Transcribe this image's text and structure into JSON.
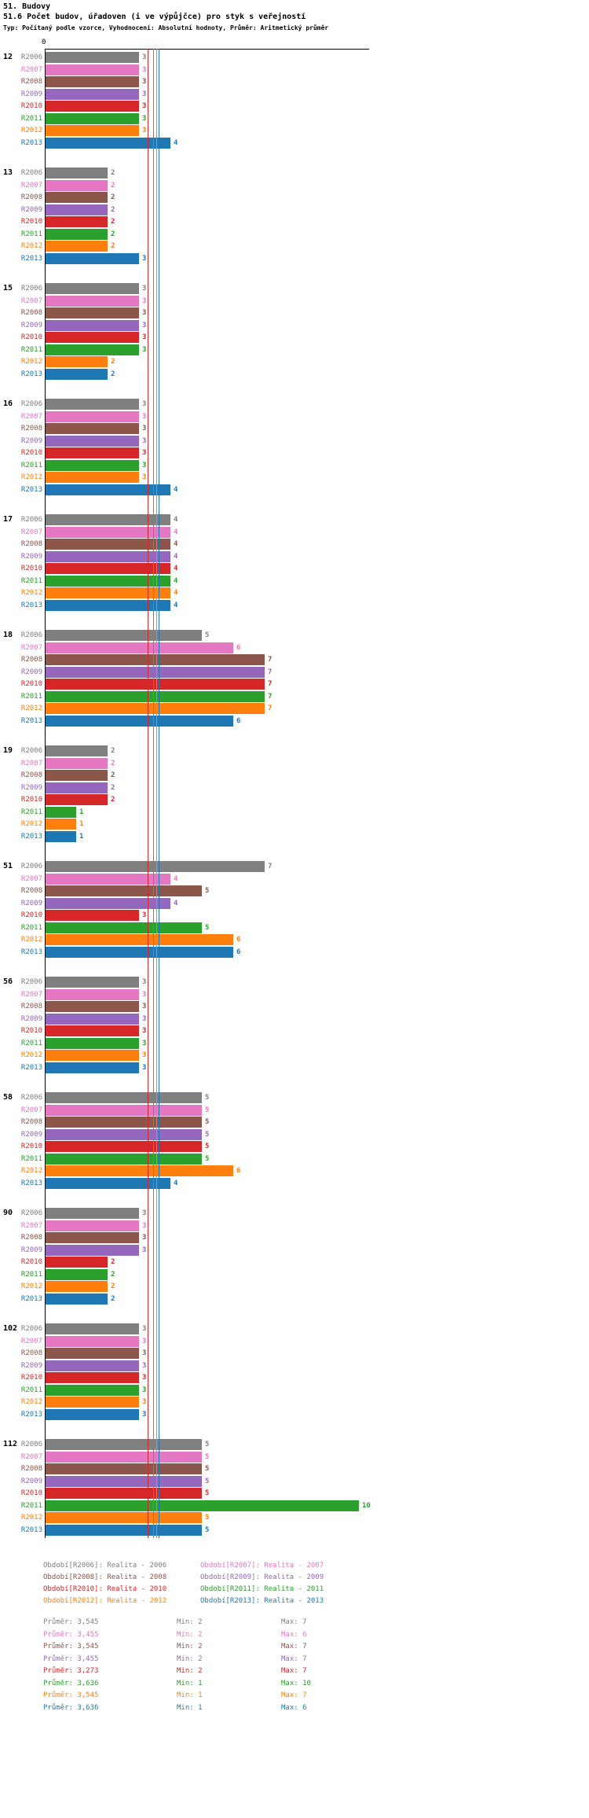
{
  "title": "51. Budovy",
  "subtitle": "51.6 Počet budov, úřadoven (i ve výpůjčce) pro styk s veřejností",
  "meta": "Typ: Počítaný podle vzorce, Vyhodnocení: Absolutní hodnoty, Průměr: Aritmetický průměr",
  "axis": {
    "origin_label": "0"
  },
  "stats_labels": {
    "avg": "Průměr",
    "min": "Min",
    "max": "Max"
  },
  "chart_data": {
    "type": "bar",
    "orientation": "horizontal",
    "title": "51.6 Počet budov, úřadoven (i ve výpůjčce) pro styk s veřejností",
    "xlim": [
      0,
      10.3
    ],
    "grid": false,
    "legend_position": "bottom",
    "categories": [
      "12",
      "13",
      "15",
      "16",
      "17",
      "18",
      "19",
      "51",
      "56",
      "58",
      "90",
      "102",
      "112"
    ],
    "series": [
      {
        "name": "R2006",
        "legend": "Období[R2006]: Realita - 2006",
        "color": "#7f7f7f",
        "values": [
          3,
          2,
          3,
          3,
          4,
          5,
          2,
          7,
          3,
          5,
          3,
          3,
          5
        ],
        "avg_value": 3.545,
        "stats": {
          "avg": "3,545",
          "min": "2",
          "max": "7"
        }
      },
      {
        "name": "R2007",
        "legend": "Období[R2007]: Realita - 2007",
        "color": "#e377c2",
        "values": [
          3,
          2,
          3,
          3,
          4,
          6,
          2,
          4,
          3,
          5,
          3,
          3,
          5
        ],
        "avg_value": 3.455,
        "stats": {
          "avg": "3,455",
          "min": "2",
          "max": "6"
        }
      },
      {
        "name": "R2008",
        "legend": "Období[R2008]: Realita - 2008",
        "color": "#8c564b",
        "values": [
          3,
          2,
          3,
          3,
          4,
          7,
          2,
          5,
          3,
          5,
          3,
          3,
          5
        ],
        "avg_value": 3.545,
        "stats": {
          "avg": "3,545",
          "min": "2",
          "max": "7"
        }
      },
      {
        "name": "R2009",
        "legend": "Období[R2009]: Realita - 2009",
        "color": "#9467bd",
        "values": [
          3,
          2,
          3,
          3,
          4,
          7,
          2,
          4,
          3,
          5,
          3,
          3,
          5
        ],
        "avg_value": 3.455,
        "stats": {
          "avg": "3,455",
          "min": "2",
          "max": "7"
        }
      },
      {
        "name": "R2010",
        "legend": "Období[R2010]: Realita - 2010",
        "color": "#d62728",
        "values": [
          3,
          2,
          3,
          3,
          4,
          7,
          2,
          3,
          3,
          5,
          2,
          3,
          5
        ],
        "avg_value": 3.273,
        "stats": {
          "avg": "3,273",
          "min": "2",
          "max": "7"
        }
      },
      {
        "name": "R2011",
        "legend": "Období[R2011]: Realita - 2011",
        "color": "#2ca02c",
        "values": [
          3,
          2,
          3,
          3,
          4,
          7,
          1,
          5,
          3,
          5,
          2,
          3,
          10
        ],
        "avg_value": 3.636,
        "stats": {
          "avg": "3,636",
          "min": "1",
          "max": "10"
        }
      },
      {
        "name": "R2012",
        "legend": "Období[R2012]: Realita - 2012",
        "color": "#ff7f0e",
        "values": [
          3,
          2,
          2,
          3,
          4,
          7,
          1,
          6,
          3,
          6,
          2,
          3,
          5
        ],
        "avg_value": 3.545,
        "stats": {
          "avg": "3,545",
          "min": "1",
          "max": "7"
        }
      },
      {
        "name": "R2013",
        "legend": "Období[R2013]: Realita - 2013",
        "color": "#1f77b4",
        "values": [
          4,
          3,
          2,
          4,
          4,
          6,
          1,
          6,
          3,
          4,
          2,
          3,
          5
        ],
        "avg_value": 3.636,
        "stats": {
          "avg": "3,636",
          "min": "1",
          "max": "6"
        }
      }
    ]
  }
}
